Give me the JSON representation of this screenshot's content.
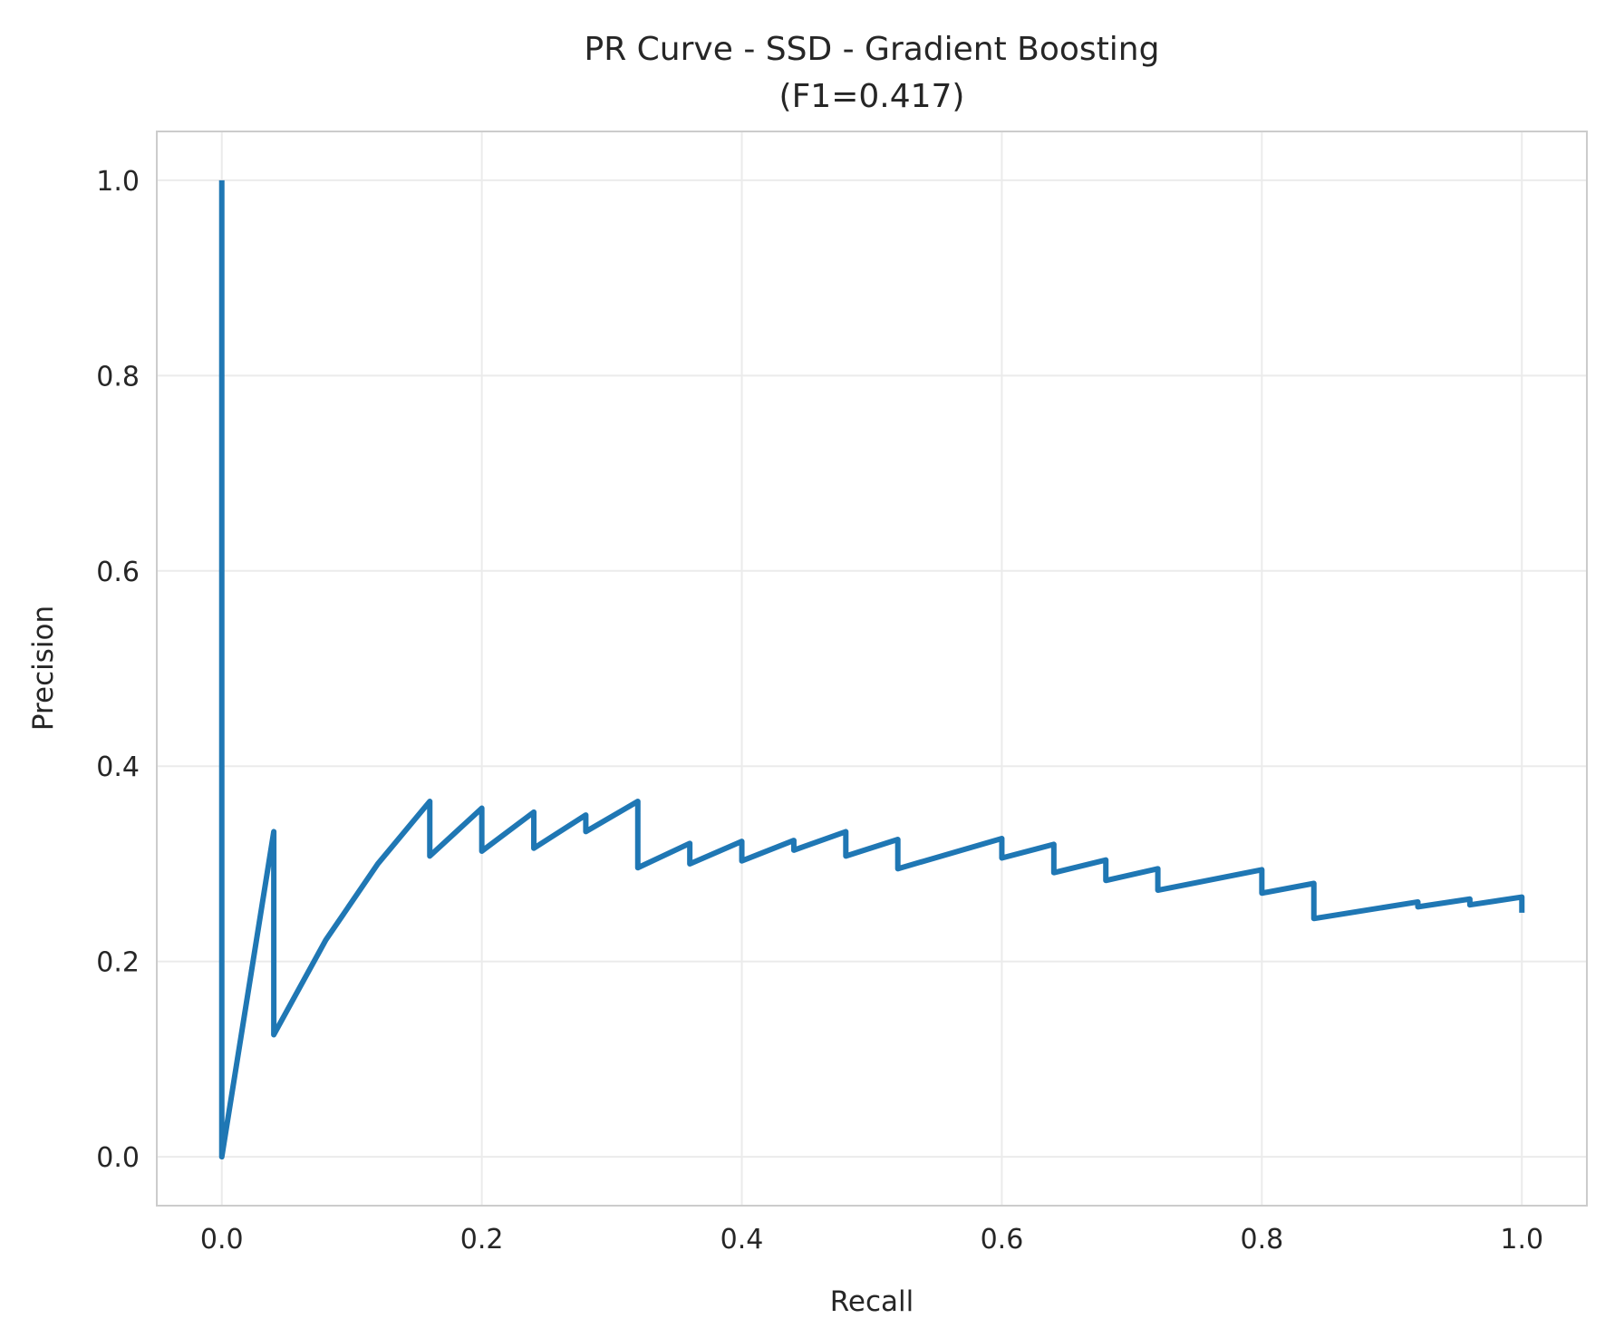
{
  "chart_data": {
    "type": "line",
    "title_line1": "PR Curve - SSD - Gradient Boosting",
    "title_line2": "(F1=0.417)",
    "xlabel": "Recall",
    "ylabel": "Precision",
    "xlim": [
      -0.05,
      1.05
    ],
    "ylim": [
      -0.05,
      1.05
    ],
    "xticks": [
      0.0,
      0.2,
      0.4,
      0.6,
      0.8,
      1.0
    ],
    "xtick_labels": [
      "0.0",
      "0.2",
      "0.4",
      "0.6",
      "0.8",
      "1.0"
    ],
    "yticks": [
      0.0,
      0.2,
      0.4,
      0.6,
      0.8,
      1.0
    ],
    "ytick_labels": [
      "0.0",
      "0.2",
      "0.4",
      "0.6",
      "0.8",
      "1.0"
    ],
    "grid": true,
    "legend": "none",
    "series": [
      {
        "color": "#1f77b4",
        "x": [
          0.0,
          0.0,
          0.04,
          0.04,
          0.08,
          0.12,
          0.16,
          0.16,
          0.2,
          0.2,
          0.24,
          0.24,
          0.28,
          0.28,
          0.32,
          0.32,
          0.36,
          0.36,
          0.4,
          0.4,
          0.44,
          0.44,
          0.48,
          0.48,
          0.52,
          0.52,
          0.6,
          0.6,
          0.64,
          0.64,
          0.68,
          0.68,
          0.72,
          0.72,
          0.8,
          0.8,
          0.84,
          0.84,
          0.92,
          0.92,
          0.96,
          0.96,
          1.0,
          1.0
        ],
        "y": [
          1.0,
          0.0,
          0.333,
          0.125,
          0.222,
          0.3,
          0.364,
          0.308,
          0.357,
          0.313,
          0.353,
          0.316,
          0.35,
          0.333,
          0.364,
          0.296,
          0.321,
          0.3,
          0.323,
          0.303,
          0.324,
          0.314,
          0.333,
          0.308,
          0.325,
          0.295,
          0.326,
          0.306,
          0.32,
          0.291,
          0.304,
          0.283,
          0.295,
          0.273,
          0.294,
          0.27,
          0.28,
          0.244,
          0.261,
          0.256,
          0.264,
          0.258,
          0.266,
          0.25
        ]
      }
    ]
  }
}
